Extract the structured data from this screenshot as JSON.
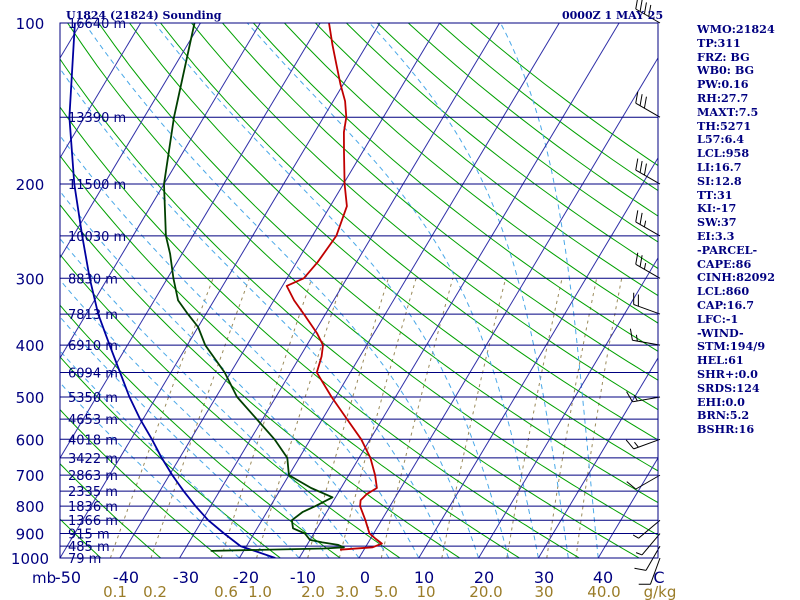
{
  "header": {
    "station": "U1824 (21824) Sounding",
    "time": "0000Z  1 MAY 25"
  },
  "indices": [
    "WMO:21824",
    "TP:311",
    "FRZ: BG",
    "WB0: BG",
    "PW:0.16",
    "RH:27.7",
    "MAXT:7.5",
    "TH:5271",
    "L57:6.4",
    "LCL:958",
    "LI:16.7",
    "SI:12.8",
    "TT:31",
    "KI:-17",
    "SW:37",
    "EI:3.3",
    "-PARCEL-",
    "CAPE:86",
    "CINH:82092",
    "LCL:860",
    "CAP:16.7",
    "LFC:-1",
    "-WIND-",
    "STM:194/9",
    "HEL:61",
    "SHR+:0.0",
    "SRDS:124",
    "EHI:0.0",
    "BRN:5.2",
    "BSHR:16"
  ],
  "chart_data": {
    "type": "skew-t log-p sounding",
    "title": "U1824 (21824) Sounding",
    "valid_time": "0000Z  1 MAY 25",
    "pressure_unit_label": "mb",
    "temp_unit_label": "C",
    "mixing_ratio_unit_label": "g/kg",
    "pressure_range": [
      1000,
      100
    ],
    "temperature_range": [
      -50,
      50
    ],
    "pressure_ticks": [
      "100",
      "200",
      "300",
      "400",
      "500",
      "600",
      "700",
      "800",
      "900",
      "1000"
    ],
    "temperature_ticks": [
      "-50",
      "-40",
      "-30",
      "-20",
      "-10",
      "0",
      "10",
      "20",
      "30",
      "40",
      "C"
    ],
    "mixing_ratio_ticks": [
      "0.1",
      "0.2",
      "0.6",
      "1.0",
      "2.0",
      "3.0",
      "5.0",
      "10",
      "20.0",
      "30",
      "40.0"
    ],
    "height_labels": [
      {
        "p": 100,
        "label": "16640 m"
      },
      {
        "p": 150,
        "label": "13390 m"
      },
      {
        "p": 200,
        "label": "11500 m"
      },
      {
        "p": 250,
        "label": "10030 m"
      },
      {
        "p": 300,
        "label": "8830 m"
      },
      {
        "p": 350,
        "label": "7813 m"
      },
      {
        "p": 400,
        "label": "6910 m"
      },
      {
        "p": 450,
        "label": "6094 m"
      },
      {
        "p": 500,
        "label": "5350 m"
      },
      {
        "p": 550,
        "label": "4653 m"
      },
      {
        "p": 600,
        "label": "4018 m"
      },
      {
        "p": 650,
        "label": "3422 m"
      },
      {
        "p": 700,
        "label": "2863 m"
      },
      {
        "p": 750,
        "label": "2335 m"
      },
      {
        "p": 800,
        "label": "1836 m"
      },
      {
        "p": 850,
        "label": "1366 m"
      },
      {
        "p": 900,
        "label": "915 m"
      },
      {
        "p": 950,
        "label": "485 m"
      },
      {
        "p": 1000,
        "label": "79 m"
      }
    ],
    "temperature_profile": [
      {
        "p": 965,
        "t": -4.0
      },
      {
        "p": 955,
        "t": 1.2
      },
      {
        "p": 940,
        "t": 2.4
      },
      {
        "p": 920,
        "t": 0.8
      },
      {
        "p": 900,
        "t": -0.7
      },
      {
        "p": 850,
        "t": -2.7
      },
      {
        "p": 800,
        "t": -5.0
      },
      {
        "p": 780,
        "t": -5.5
      },
      {
        "p": 760,
        "t": -5.1
      },
      {
        "p": 740,
        "t": -4.0
      },
      {
        "p": 700,
        "t": -5.6
      },
      {
        "p": 650,
        "t": -8.1
      },
      {
        "p": 600,
        "t": -11.5
      },
      {
        "p": 550,
        "t": -15.9
      },
      {
        "p": 500,
        "t": -20.7
      },
      {
        "p": 450,
        "t": -25.6
      },
      {
        "p": 420,
        "t": -26.4
      },
      {
        "p": 400,
        "t": -27.3
      },
      {
        "p": 380,
        "t": -29.5
      },
      {
        "p": 350,
        "t": -33.6
      },
      {
        "p": 330,
        "t": -36.6
      },
      {
        "p": 310,
        "t": -39.3
      },
      {
        "p": 300,
        "t": -37.2
      },
      {
        "p": 280,
        "t": -36.5
      },
      {
        "p": 250,
        "t": -36.0
      },
      {
        "p": 220,
        "t": -37.2
      },
      {
        "p": 200,
        "t": -39.8
      },
      {
        "p": 175,
        "t": -43.0
      },
      {
        "p": 160,
        "t": -45.1
      },
      {
        "p": 150,
        "t": -46.2
      },
      {
        "p": 140,
        "t": -48.0
      },
      {
        "p": 130,
        "t": -50.5
      },
      {
        "p": 120,
        "t": -53.0
      },
      {
        "p": 110,
        "t": -55.7
      },
      {
        "p": 100,
        "t": -58.5
      }
    ],
    "dewpoint_profile": [
      {
        "p": 970,
        "t": -25.5
      },
      {
        "p": 960,
        "t": -6.8
      },
      {
        "p": 955,
        "t": -3.6
      },
      {
        "p": 945,
        "t": -4.8
      },
      {
        "p": 935,
        "t": -7.7
      },
      {
        "p": 925,
        "t": -10.0
      },
      {
        "p": 900,
        "t": -11.5
      },
      {
        "p": 880,
        "t": -14.0
      },
      {
        "p": 850,
        "t": -15.0
      },
      {
        "p": 820,
        "t": -14.0
      },
      {
        "p": 800,
        "t": -12.5
      },
      {
        "p": 770,
        "t": -10.5
      },
      {
        "p": 740,
        "t": -15.0
      },
      {
        "p": 700,
        "t": -20.0
      },
      {
        "p": 650,
        "t": -22.0
      },
      {
        "p": 600,
        "t": -26.0
      },
      {
        "p": 550,
        "t": -31.0
      },
      {
        "p": 500,
        "t": -36.5
      },
      {
        "p": 450,
        "t": -41.0
      },
      {
        "p": 400,
        "t": -47.0
      },
      {
        "p": 370,
        "t": -50.0
      },
      {
        "p": 350,
        "t": -53.0
      },
      {
        "p": 330,
        "t": -56.0
      },
      {
        "p": 300,
        "t": -59.0
      },
      {
        "p": 270,
        "t": -62.0
      },
      {
        "p": 250,
        "t": -64.5
      },
      {
        "p": 200,
        "t": -70.0
      },
      {
        "p": 150,
        "t": -75.0
      },
      {
        "p": 100,
        "t": -81.0
      }
    ],
    "parcel_profile": [
      {
        "p": 1000,
        "t": -14.0
      },
      {
        "p": 950,
        "t": -21.0
      },
      {
        "p": 900,
        "t": -25.0
      },
      {
        "p": 850,
        "t": -29.0
      },
      {
        "p": 800,
        "t": -32.5
      },
      {
        "p": 750,
        "t": -36.0
      },
      {
        "p": 700,
        "t": -39.5
      },
      {
        "p": 650,
        "t": -43.0
      },
      {
        "p": 600,
        "t": -46.5
      },
      {
        "p": 550,
        "t": -50.5
      },
      {
        "p": 500,
        "t": -54.5
      },
      {
        "p": 450,
        "t": -58.5
      },
      {
        "p": 400,
        "t": -63.0
      },
      {
        "p": 350,
        "t": -68.0
      },
      {
        "p": 300,
        "t": -73.0
      },
      {
        "p": 250,
        "t": -78.5
      },
      {
        "p": 200,
        "t": -85.0
      },
      {
        "p": 150,
        "t": -92.5
      },
      {
        "p": 100,
        "t": -101.0
      }
    ],
    "wind_barbs": [
      {
        "p": 1000,
        "dir": 200,
        "kt": 10
      },
      {
        "p": 950,
        "dir": 210,
        "kt": 10
      },
      {
        "p": 900,
        "dir": 220,
        "kt": 5
      },
      {
        "p": 850,
        "dir": 230,
        "kt": 5
      },
      {
        "p": 700,
        "dir": 240,
        "kt": 10
      },
      {
        "p": 600,
        "dir": 250,
        "kt": 15
      },
      {
        "p": 500,
        "dir": 260,
        "kt": 15
      },
      {
        "p": 400,
        "dir": 280,
        "kt": 15
      },
      {
        "p": 350,
        "dir": 290,
        "kt": 20
      },
      {
        "p": 300,
        "dir": 300,
        "kt": 25
      },
      {
        "p": 250,
        "dir": 300,
        "kt": 25
      },
      {
        "p": 200,
        "dir": 300,
        "kt": 30
      },
      {
        "p": 150,
        "dir": 300,
        "kt": 30
      },
      {
        "p": 100,
        "dir": 300,
        "kt": 40
      }
    ],
    "colors": {
      "isobar": "#000080",
      "isotherm": "#3030a8",
      "dry_adiabat": "#00a000",
      "moist_adiabat": "#4aa8e8",
      "mixing_ratio": "#9a8a5a",
      "temperature": "#c00000",
      "dewpoint": "#004000",
      "parcel": "#0000a0",
      "axis_text": "#000080",
      "mixing_text": "#9a7c28",
      "wind_barb": "#000000"
    }
  }
}
